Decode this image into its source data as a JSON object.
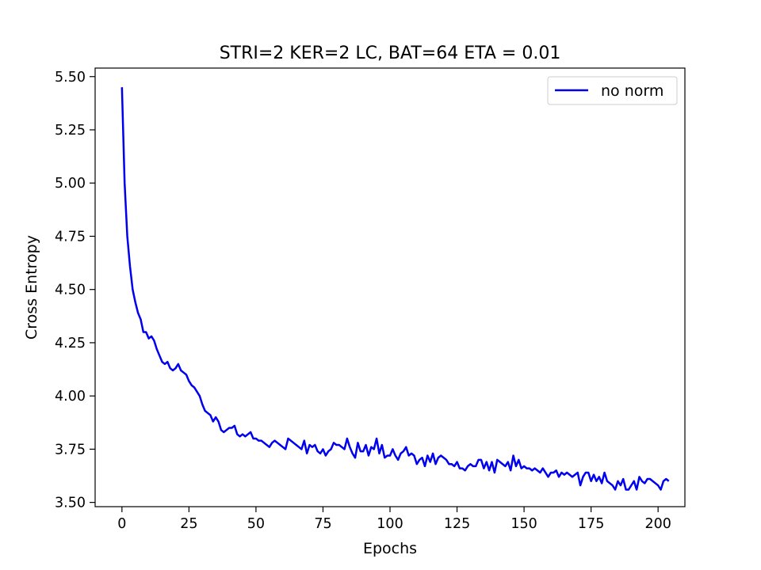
{
  "chart_data": {
    "type": "line",
    "title": "STRI=2 KER=2 LC, BAT=64 ETA = 0.01",
    "xlabel": "Epochs",
    "ylabel": "Cross Entropy",
    "xlim": [
      -10,
      210
    ],
    "ylim": [
      3.48,
      5.54
    ],
    "xticks": [
      0,
      25,
      50,
      75,
      100,
      125,
      150,
      175,
      200
    ],
    "yticks": [
      3.5,
      3.75,
      4.0,
      4.25,
      4.5,
      4.75,
      5.0,
      5.25,
      5.5
    ],
    "xtick_labels": [
      "0",
      "25",
      "50",
      "75",
      "100",
      "125",
      "150",
      "175",
      "200"
    ],
    "ytick_labels": [
      "3.50",
      "3.75",
      "4.00",
      "4.25",
      "4.50",
      "4.75",
      "5.00",
      "5.25",
      "5.50"
    ],
    "grid": false,
    "legend_position": "top-right",
    "series": [
      {
        "name": "no norm",
        "color": "#0000ee",
        "x_start": 0,
        "x_step": 1,
        "values": [
          5.45,
          5.0,
          4.75,
          4.61,
          4.5,
          4.44,
          4.39,
          4.36,
          4.3,
          4.3,
          4.27,
          4.28,
          4.26,
          4.22,
          4.19,
          4.16,
          4.15,
          4.16,
          4.13,
          4.12,
          4.13,
          4.15,
          4.12,
          4.11,
          4.1,
          4.07,
          4.05,
          4.04,
          4.02,
          4.0,
          3.96,
          3.93,
          3.92,
          3.91,
          3.88,
          3.9,
          3.88,
          3.84,
          3.83,
          3.84,
          3.85,
          3.85,
          3.86,
          3.82,
          3.81,
          3.82,
          3.81,
          3.82,
          3.83,
          3.8,
          3.8,
          3.79,
          3.79,
          3.78,
          3.77,
          3.76,
          3.78,
          3.79,
          3.78,
          3.77,
          3.76,
          3.75,
          3.8,
          3.79,
          3.78,
          3.77,
          3.76,
          3.75,
          3.79,
          3.73,
          3.77,
          3.76,
          3.77,
          3.74,
          3.73,
          3.75,
          3.72,
          3.74,
          3.75,
          3.78,
          3.77,
          3.77,
          3.76,
          3.75,
          3.8,
          3.76,
          3.73,
          3.71,
          3.78,
          3.74,
          3.74,
          3.77,
          3.72,
          3.76,
          3.75,
          3.8,
          3.73,
          3.77,
          3.71,
          3.72,
          3.72,
          3.75,
          3.72,
          3.7,
          3.73,
          3.74,
          3.76,
          3.72,
          3.73,
          3.72,
          3.68,
          3.7,
          3.71,
          3.67,
          3.72,
          3.69,
          3.73,
          3.68,
          3.71,
          3.72,
          3.71,
          3.7,
          3.68,
          3.68,
          3.67,
          3.69,
          3.66,
          3.66,
          3.65,
          3.67,
          3.68,
          3.67,
          3.67,
          3.7,
          3.7,
          3.66,
          3.69,
          3.65,
          3.69,
          3.64,
          3.7,
          3.69,
          3.68,
          3.67,
          3.69,
          3.65,
          3.72,
          3.67,
          3.7,
          3.66,
          3.67,
          3.66,
          3.66,
          3.65,
          3.66,
          3.65,
          3.64,
          3.66,
          3.64,
          3.62,
          3.64,
          3.64,
          3.65,
          3.62,
          3.64,
          3.63,
          3.64,
          3.63,
          3.62,
          3.63,
          3.64,
          3.58,
          3.62,
          3.64,
          3.64,
          3.6,
          3.63,
          3.6,
          3.62,
          3.59,
          3.64,
          3.6,
          3.59,
          3.58,
          3.56,
          3.6,
          3.58,
          3.61,
          3.56,
          3.56,
          3.58,
          3.6,
          3.56,
          3.62,
          3.6,
          3.59,
          3.61,
          3.61,
          3.6,
          3.59,
          3.58,
          3.56,
          3.6,
          3.61,
          3.6
        ]
      }
    ]
  }
}
